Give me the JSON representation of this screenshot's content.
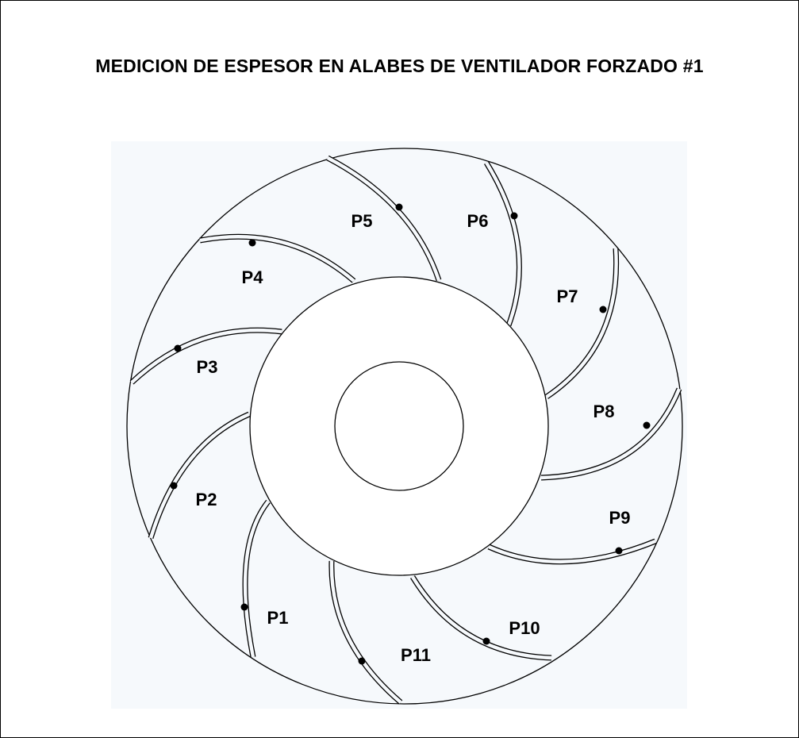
{
  "title": "MEDICION DE ESPESOR EN ALABES DE VENTILADOR FORZADO #1",
  "colors": {
    "background": "#ffffff",
    "panel": "#f6f9fc",
    "line": "#000000",
    "point": "#000000"
  },
  "points": [
    {
      "label": "P1"
    },
    {
      "label": "P2"
    },
    {
      "label": "P3"
    },
    {
      "label": "P4"
    },
    {
      "label": "P5"
    },
    {
      "label": "P6"
    },
    {
      "label": "P7"
    },
    {
      "label": "P8"
    },
    {
      "label": "P9"
    },
    {
      "label": "P10"
    },
    {
      "label": "P11"
    }
  ]
}
